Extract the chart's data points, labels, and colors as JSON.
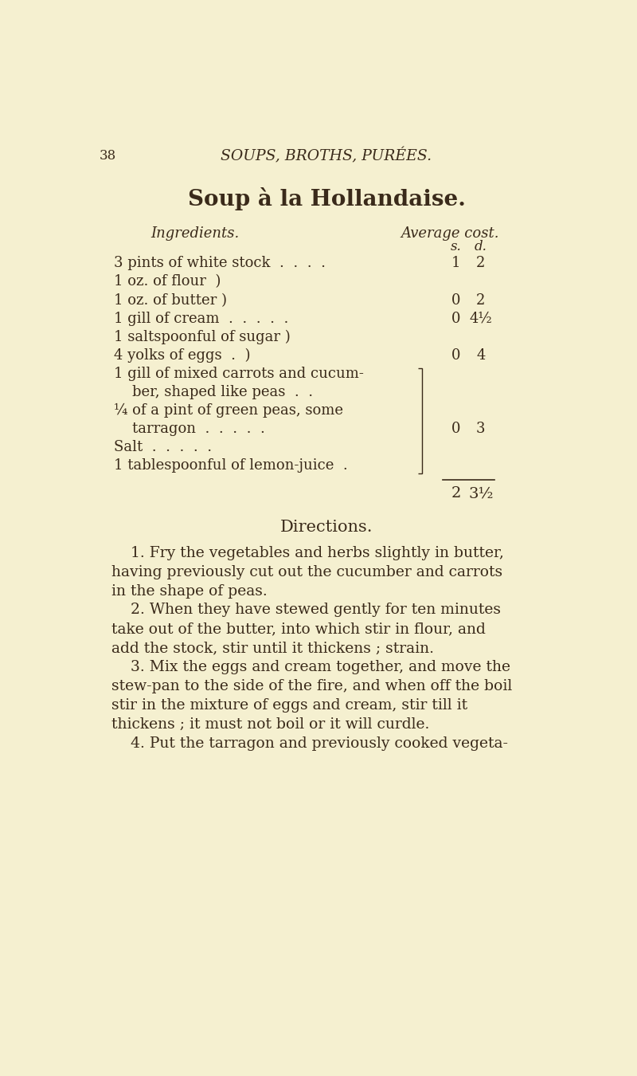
{
  "bg_color": "#f5f0d0",
  "text_color": "#3a2a1a",
  "page_number": "38",
  "header": "SOUPS, BROTHS, PURÉES.",
  "title": "Soup à la Hollandaise.",
  "col1_header": "Ingredients.",
  "col2_header": "Average cost.",
  "s_header": "s.",
  "d_header": "d.",
  "total_s": "2",
  "total_d": "3½",
  "directions_header": "Directions.",
  "directions": [
    "    1. Fry the vegetables and herbs slightly in butter,",
    "having previously cut out the cucumber and carrots",
    "in the shape of peas.",
    "    2. When they have stewed gently for ten minutes",
    "take out of the butter, into which stir in flour, and",
    "add the stock, stir until it thickens ; strain.",
    "    3. Mix the eggs and cream together, and move the",
    "stew-pan to the side of the fire, and when off the boil",
    "stir in the mixture of eggs and cream, stir till it",
    "thickens ; it must not boil or it will curdle.",
    "    4. Put the tarragon and previously cooked vegeta-"
  ]
}
